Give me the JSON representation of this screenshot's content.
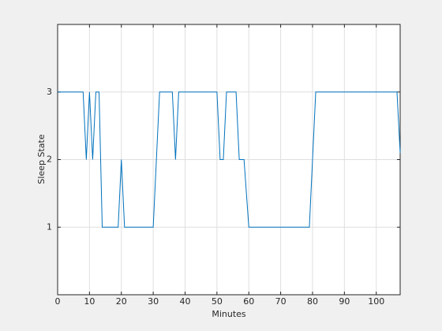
{
  "chart_data": {
    "type": "line",
    "x_label": "Minutes",
    "y_label": "Sleep State",
    "x": [
      0,
      8,
      9,
      10,
      11,
      12,
      13,
      14,
      19,
      20,
      21,
      30,
      32,
      36,
      37,
      38,
      50,
      51,
      52,
      53,
      56,
      57,
      58.5,
      60,
      79,
      81,
      106.5,
      107.5
    ],
    "series": [
      {
        "color": "#0072bd",
        "values": [
          3,
          3,
          2,
          3,
          2,
          3,
          3,
          1,
          1,
          2,
          1,
          1,
          3,
          3,
          2,
          3,
          3,
          2,
          2,
          3,
          3,
          2,
          2,
          1,
          1,
          3,
          3,
          2.1
        ]
      }
    ],
    "xlim": [
      0,
      107.5
    ],
    "xticks": [
      0,
      10,
      20,
      30,
      40,
      50,
      60,
      70,
      80,
      90,
      100
    ],
    "ylim": [
      0,
      4
    ],
    "yticks": [
      1,
      2,
      3
    ],
    "grid": true
  }
}
